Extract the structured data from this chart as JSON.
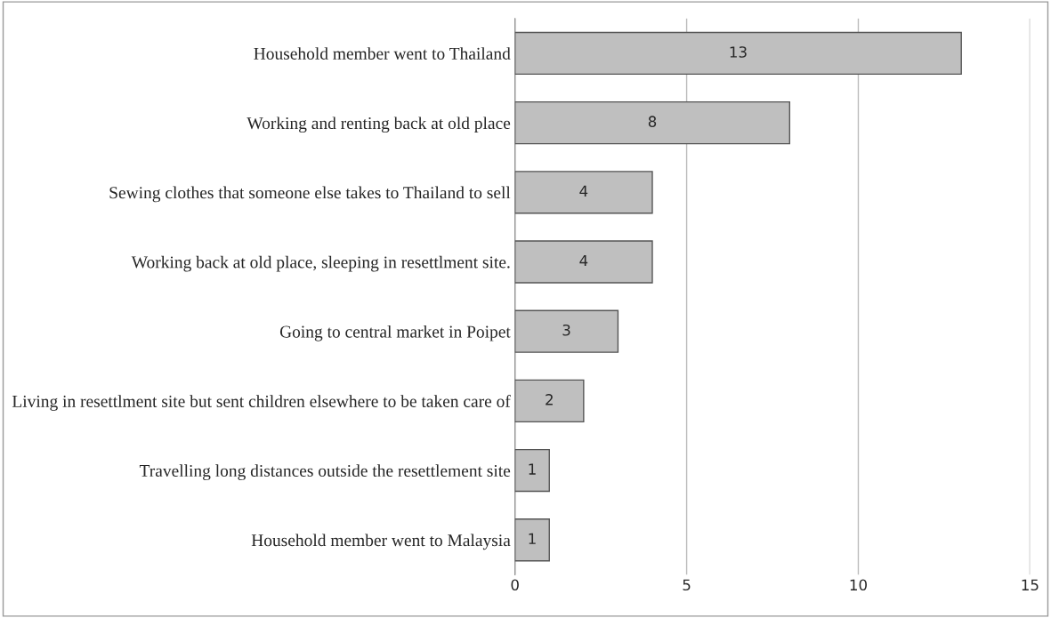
{
  "chart_data": {
    "type": "bar",
    "orientation": "horizontal",
    "categories": [
      "Household member went to Thailand",
      "Working and renting back at old place",
      "Sewing clothes that someone else takes to Thailand to sell",
      "Working back at old place, sleeping in resettlment site.",
      "Going to central market in Poipet",
      "Living in resettlment site but sent children elsewhere to be taken care of",
      "Travelling long distances outside the resettlement site",
      "Household member went to Malaysia"
    ],
    "values": [
      13,
      8,
      4,
      4,
      3,
      2,
      1,
      1
    ],
    "color": "#bfbfbf",
    "xlim": [
      0,
      15
    ],
    "xticks": [
      0,
      5,
      10,
      15
    ],
    "grid": "x",
    "data_labels": true,
    "legend": false
  }
}
